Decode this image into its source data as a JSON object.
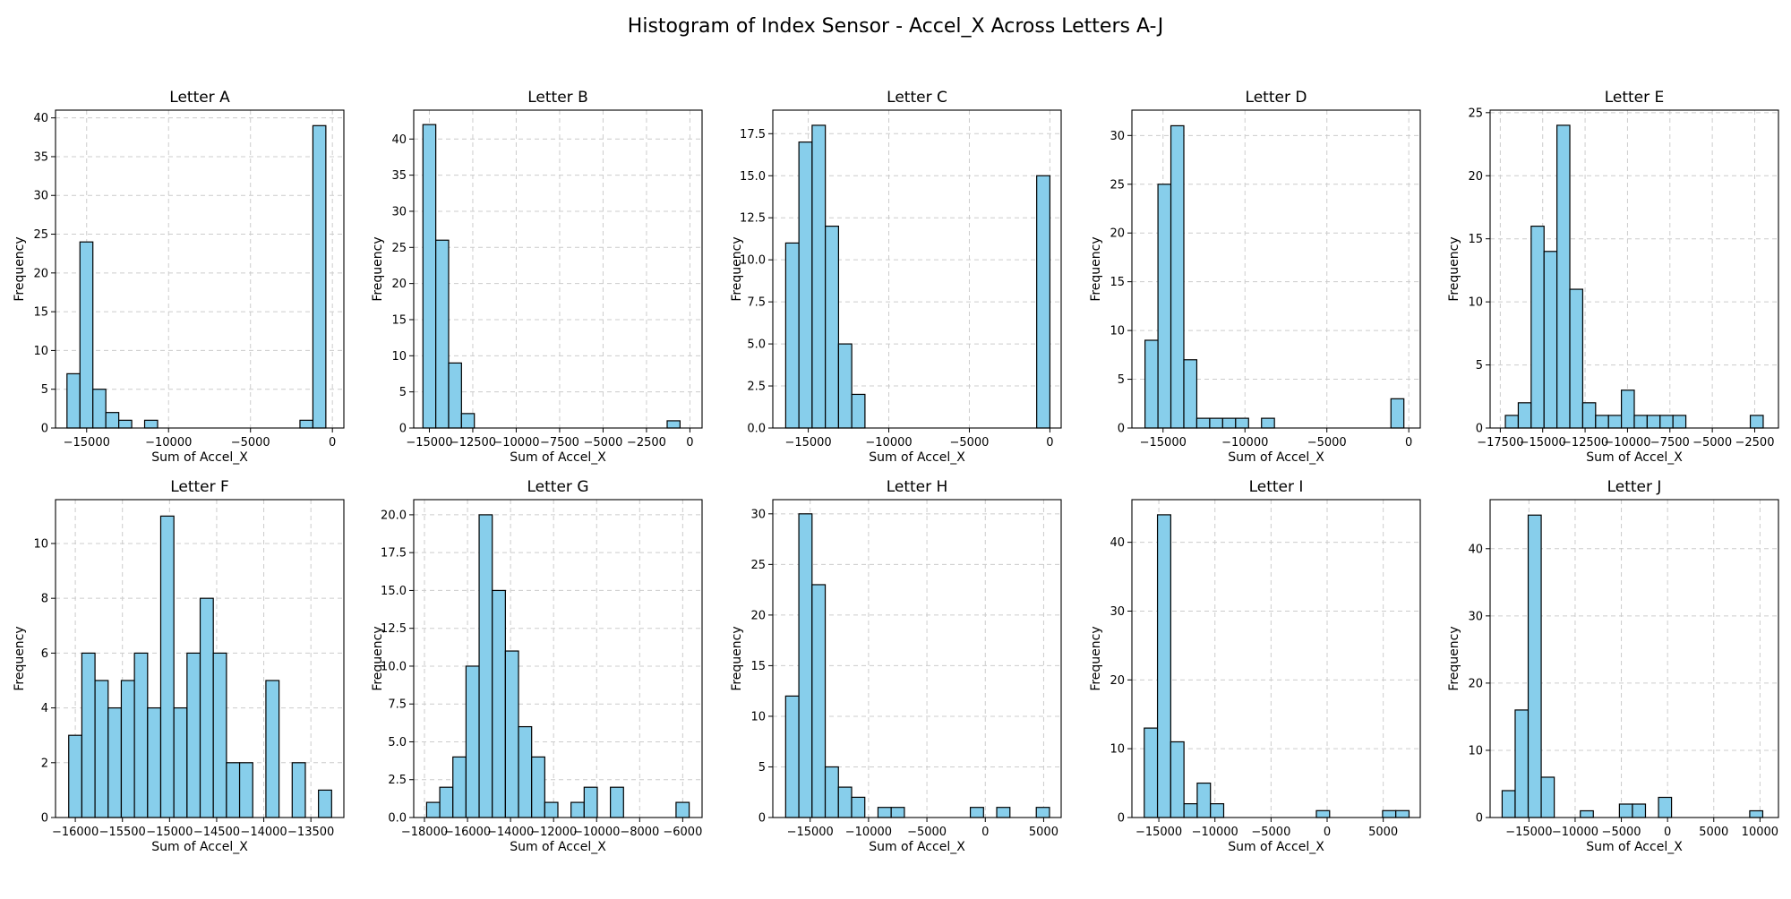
{
  "figure": {
    "title": "Histogram of Index Sensor - Accel_X Across Letters A-J"
  },
  "colors": {
    "bar_fill": "#87ceeb",
    "bar_edge": "#000000",
    "grid": "#cccccc"
  },
  "chart_data": [
    {
      "type": "bar",
      "title": "Letter A",
      "xlabel": "Sum of Accel_X",
      "ylabel": "Frequency",
      "grid": true,
      "ylim": [
        0,
        41
      ],
      "xlim": [
        -16900,
        700
      ],
      "xticks": [
        -15000,
        -10000,
        -5000,
        0
      ],
      "xtick_labels": [
        "−15000",
        "−10000",
        "−5000",
        "0"
      ],
      "yticks": [
        0,
        5,
        10,
        15,
        20,
        25,
        30,
        35,
        40
      ],
      "ytick_labels": [
        "0",
        "5",
        "10",
        "15",
        "20",
        "25",
        "30",
        "35",
        "40"
      ],
      "bin_start": -16200,
      "bin_width": 790,
      "values": [
        7,
        24,
        5,
        2,
        1,
        0,
        1,
        0,
        0,
        0,
        0,
        0,
        0,
        0,
        0,
        0,
        0,
        0,
        1,
        39
      ]
    },
    {
      "type": "bar",
      "title": "Letter B",
      "xlabel": "Sum of Accel_X",
      "ylabel": "Frequency",
      "grid": true,
      "ylim": [
        0,
        44
      ],
      "xlim": [
        -15900,
        700
      ],
      "xticks": [
        -15000,
        -12500,
        -10000,
        -7500,
        -5000,
        -2500,
        0
      ],
      "xtick_labels": [
        "−15000",
        "−12500",
        "−10000",
        "−7500",
        "−5000",
        "−2500",
        "0"
      ],
      "yticks": [
        0,
        5,
        10,
        15,
        20,
        25,
        30,
        35,
        40
      ],
      "ytick_labels": [
        "0",
        "5",
        "10",
        "15",
        "20",
        "25",
        "30",
        "35",
        "40"
      ],
      "bin_start": -15370,
      "bin_width": 740,
      "values": [
        42,
        26,
        9,
        2,
        0,
        0,
        0,
        0,
        0,
        0,
        0,
        0,
        0,
        0,
        0,
        0,
        0,
        0,
        0,
        1
      ]
    },
    {
      "type": "bar",
      "title": "Letter C",
      "xlabel": "Sum of Accel_X",
      "ylabel": "Frequency",
      "grid": true,
      "ylim": [
        0,
        18.9
      ],
      "xlim": [
        -17200,
        700
      ],
      "xticks": [
        -15000,
        -10000,
        -5000,
        0
      ],
      "xtick_labels": [
        "−15000",
        "−10000",
        "−5000",
        "0"
      ],
      "yticks": [
        0,
        2.5,
        5,
        7.5,
        10,
        12.5,
        15,
        17.5
      ],
      "ytick_labels": [
        "0.0",
        "2.5",
        "5.0",
        "7.5",
        "10.0",
        "12.5",
        "15.0",
        "17.5"
      ],
      "bin_start": -16400,
      "bin_width": 820,
      "values": [
        11,
        17,
        18,
        12,
        5,
        2,
        0,
        0,
        0,
        0,
        0,
        0,
        0,
        0,
        0,
        0,
        0,
        0,
        0,
        15
      ]
    },
    {
      "type": "bar",
      "title": "Letter D",
      "xlabel": "Sum of Accel_X",
      "ylabel": "Frequency",
      "grid": true,
      "ylim": [
        0,
        32.6
      ],
      "xlim": [
        -16900,
        700
      ],
      "xticks": [
        -15000,
        -10000,
        -5000,
        0
      ],
      "xtick_labels": [
        "−15000",
        "−10000",
        "−5000",
        "0"
      ],
      "yticks": [
        0,
        5,
        10,
        15,
        20,
        25,
        30
      ],
      "ytick_labels": [
        "0",
        "5",
        "10",
        "15",
        "20",
        "25",
        "30"
      ],
      "bin_start": -16100,
      "bin_width": 790,
      "values": [
        9,
        25,
        31,
        7,
        1,
        1,
        1,
        1,
        0,
        1,
        0,
        0,
        0,
        0,
        0,
        0,
        0,
        0,
        0,
        3
      ]
    },
    {
      "type": "bar",
      "title": "Letter E",
      "xlabel": "Sum of Accel_X",
      "ylabel": "Frequency",
      "grid": true,
      "ylim": [
        0,
        25.2
      ],
      "xlim": [
        -18100,
        -1100
      ],
      "xticks": [
        -17500,
        -15000,
        -12500,
        -10000,
        -7500,
        -5000,
        -2500
      ],
      "xtick_labels": [
        "−17500",
        "−15000",
        "−12500",
        "−10000",
        "−7500",
        "−5000",
        "−2500"
      ],
      "yticks": [
        0,
        5,
        10,
        15,
        20,
        25
      ],
      "ytick_labels": [
        "0",
        "5",
        "10",
        "15",
        "20",
        "25"
      ],
      "bin_start": -17200,
      "bin_width": 760,
      "values": [
        1,
        2,
        16,
        14,
        24,
        11,
        2,
        1,
        1,
        3,
        1,
        1,
        1,
        1,
        0,
        0,
        0,
        0,
        0,
        1
      ]
    },
    {
      "type": "bar",
      "title": "Letter F",
      "xlabel": "Sum of Accel_X",
      "ylabel": "Frequency",
      "grid": true,
      "ylim": [
        0,
        11.6
      ],
      "xlim": [
        -16210,
        -13150
      ],
      "xticks": [
        -16000,
        -15500,
        -15000,
        -14500,
        -14000,
        -13500
      ],
      "xtick_labels": [
        "−16000",
        "−15500",
        "−15000",
        "−14500",
        "−14000",
        "−13500"
      ],
      "yticks": [
        0,
        2,
        4,
        6,
        8,
        10
      ],
      "ytick_labels": [
        "0",
        "2",
        "4",
        "6",
        "8",
        "10"
      ],
      "bin_start": -16070,
      "bin_width": 139.5,
      "values": [
        3,
        6,
        5,
        4,
        5,
        6,
        4,
        11,
        4,
        6,
        8,
        6,
        2,
        2,
        0,
        5,
        0,
        2,
        0,
        1
      ]
    },
    {
      "type": "bar",
      "title": "Letter G",
      "xlabel": "Sum of Accel_X",
      "ylabel": "Frequency",
      "grid": true,
      "ylim": [
        0,
        21
      ],
      "xlim": [
        -18500,
        -5100
      ],
      "xticks": [
        -18000,
        -16000,
        -14000,
        -12000,
        -10000,
        -8000,
        -6000
      ],
      "xtick_labels": [
        "−18000",
        "−16000",
        "−14000",
        "−12000",
        "−10000",
        "−8000",
        "−6000"
      ],
      "yticks": [
        0,
        2.5,
        5,
        7.5,
        10,
        12.5,
        15,
        17.5,
        20
      ],
      "ytick_labels": [
        "0.0",
        "2.5",
        "5.0",
        "7.5",
        "10.0",
        "12.5",
        "15.0",
        "17.5",
        "20.0"
      ],
      "bin_start": -17900,
      "bin_width": 610,
      "values": [
        1,
        2,
        4,
        10,
        20,
        15,
        11,
        6,
        4,
        1,
        0,
        1,
        2,
        0,
        2,
        0,
        0,
        0,
        0,
        1
      ]
    },
    {
      "type": "bar",
      "title": "Letter H",
      "xlabel": "Sum of Accel_X",
      "ylabel": "Frequency",
      "grid": true,
      "ylim": [
        0,
        31.4
      ],
      "xlim": [
        -18200,
        6500
      ],
      "xticks": [
        -15000,
        -10000,
        -5000,
        0,
        5000
      ],
      "xtick_labels": [
        "−15000",
        "−10000",
        "−5000",
        "0",
        "5000"
      ],
      "yticks": [
        0,
        5,
        10,
        15,
        20,
        25,
        30
      ],
      "ytick_labels": [
        "0",
        "5",
        "10",
        "15",
        "20",
        "25",
        "30"
      ],
      "bin_start": -17100,
      "bin_width": 1130,
      "values": [
        12,
        30,
        23,
        5,
        3,
        2,
        0,
        1,
        1,
        0,
        0,
        0,
        0,
        0,
        1,
        0,
        1,
        0,
        0,
        1
      ]
    },
    {
      "type": "bar",
      "title": "Letter I",
      "xlabel": "Sum of Accel_X",
      "ylabel": "Frequency",
      "grid": true,
      "ylim": [
        0,
        46.2
      ],
      "xlim": [
        -17400,
        8300
      ],
      "xticks": [
        -15000,
        -10000,
        -5000,
        0,
        5000
      ],
      "xtick_labels": [
        "−15000",
        "−10000",
        "−5000",
        "0",
        "5000"
      ],
      "yticks": [
        0,
        10,
        20,
        30,
        40
      ],
      "ytick_labels": [
        "0",
        "10",
        "20",
        "30",
        "40"
      ],
      "bin_start": -16300,
      "bin_width": 1180,
      "values": [
        13,
        44,
        11,
        2,
        5,
        2,
        0,
        0,
        0,
        0,
        0,
        0,
        0,
        1,
        0,
        0,
        0,
        0,
        1,
        1
      ]
    },
    {
      "type": "bar",
      "title": "Letter J",
      "xlabel": "Sum of Accel_X",
      "ylabel": "Frequency",
      "grid": true,
      "ylim": [
        0,
        47.3
      ],
      "xlim": [
        -19200,
        12000
      ],
      "xticks": [
        -15000,
        -10000,
        -5000,
        0,
        5000,
        10000
      ],
      "xtick_labels": [
        "−15000",
        "−10000",
        "−5000",
        "0",
        "5000",
        "10000"
      ],
      "yticks": [
        0,
        10,
        20,
        30,
        40
      ],
      "ytick_labels": [
        "0",
        "10",
        "20",
        "30",
        "40"
      ],
      "bin_start": -17900,
      "bin_width": 1410,
      "values": [
        4,
        16,
        45,
        6,
        0,
        0,
        1,
        0,
        0,
        2,
        2,
        0,
        3,
        0,
        0,
        0,
        0,
        0,
        0,
        1
      ]
    }
  ]
}
